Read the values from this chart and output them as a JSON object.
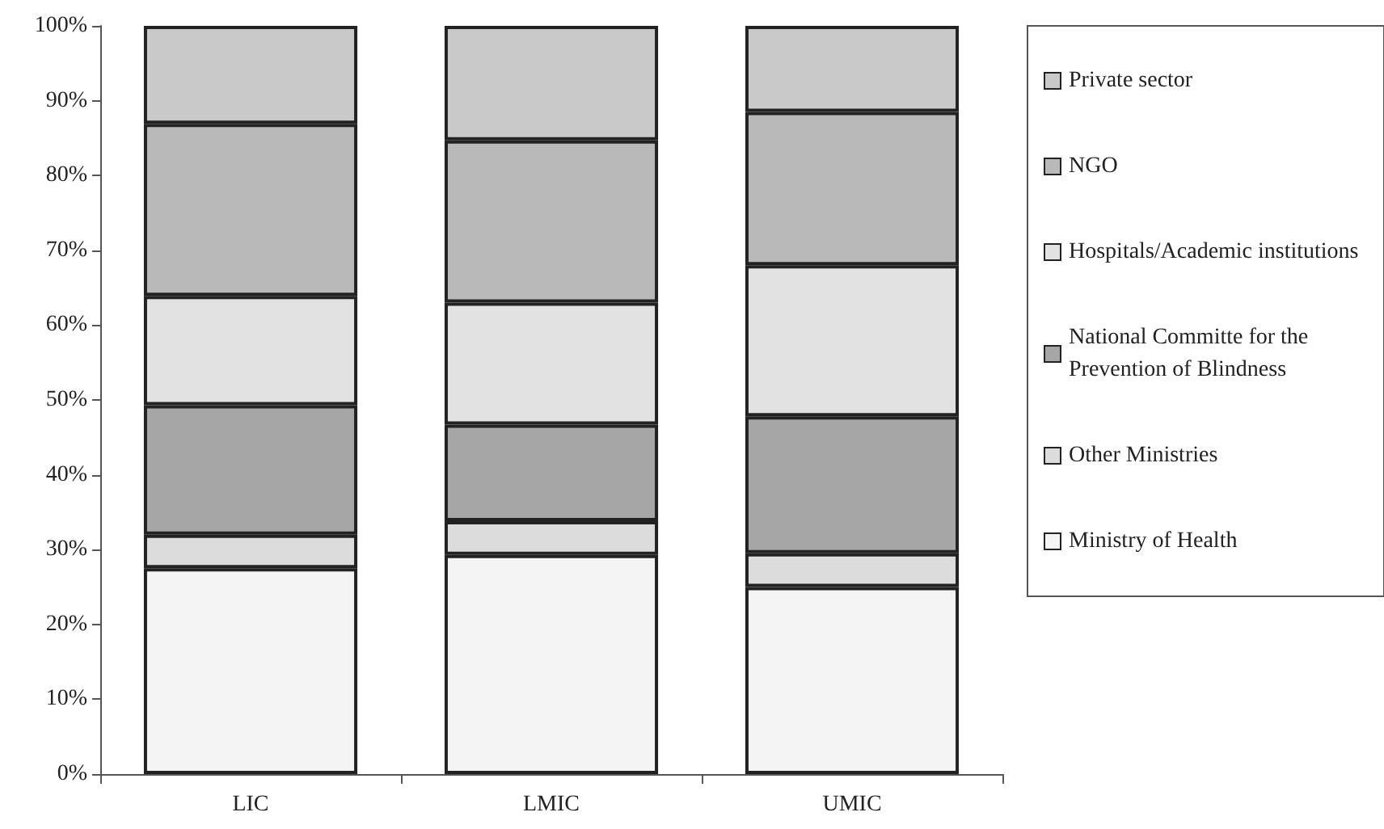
{
  "chart_data": {
    "type": "bar",
    "stacked": true,
    "categories": [
      "LIC",
      "LMIC",
      "UMIC"
    ],
    "series": [
      {
        "name": "Ministry of Health",
        "color": "#f4f4f4",
        "values": [
          27.5,
          29.3,
          25.0
        ]
      },
      {
        "name": "Other Ministries",
        "color": "#dcdcdc",
        "values": [
          4.5,
          4.5,
          4.5
        ]
      },
      {
        "name": "National Committe for the Prevention of Blindness",
        "color": "#a6a6a6",
        "values": [
          17.3,
          12.9,
          18.3
        ]
      },
      {
        "name": "Hospitals/Academic institutions",
        "color": "#e2e2e2",
        "values": [
          14.6,
          16.3,
          20.2
        ]
      },
      {
        "name": "NGO",
        "color": "#b9b9b9",
        "values": [
          23.0,
          21.7,
          20.5
        ]
      },
      {
        "name": "Private sector",
        "color": "#c9c9c9",
        "values": [
          13.1,
          15.3,
          11.5
        ]
      }
    ],
    "ylim": [
      0,
      100
    ],
    "yticks": [
      {
        "value": 0,
        "label": "0%"
      },
      {
        "value": 10,
        "label": "10%"
      },
      {
        "value": 20,
        "label": "20%"
      },
      {
        "value": 30,
        "label": "30%"
      },
      {
        "value": 40,
        "label": "40%"
      },
      {
        "value": 50,
        "label": "50%"
      },
      {
        "value": 60,
        "label": "60%"
      },
      {
        "value": 70,
        "label": "70%"
      },
      {
        "value": 80,
        "label": "80%"
      },
      {
        "value": 90,
        "label": "90%"
      },
      {
        "value": 100,
        "label": "100%"
      }
    ],
    "grid": false,
    "legend": "right"
  }
}
